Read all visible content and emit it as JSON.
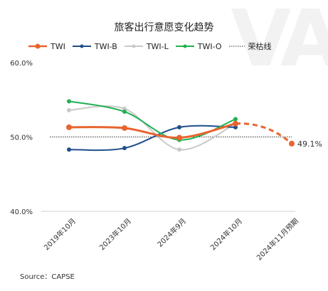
{
  "chart_data": {
    "type": "line",
    "title": "旅客出行意愿变化趋势",
    "categories": [
      "2019年10月",
      "2023年10月",
      "2024年9月",
      "2024年10月",
      "2024年11月预期"
    ],
    "ylim": [
      40,
      60
    ],
    "yticks": [
      "40.0%",
      "50.0%",
      "60.0%"
    ],
    "grid": false,
    "legend_position": "top",
    "threshold": {
      "name": "荣枯线",
      "value": 50
    },
    "series": [
      {
        "name": "TWI",
        "color": "#e8642f",
        "values": [
          51.3,
          51.2,
          49.9,
          51.8,
          null
        ],
        "forecast": 49.1,
        "forecast_label": "49.1%"
      },
      {
        "name": "TWI-B",
        "color": "#1f4e8c",
        "values": [
          48.3,
          48.5,
          51.3,
          51.3,
          null
        ]
      },
      {
        "name": "TWI-L",
        "color": "#c8c8c8",
        "values": [
          53.6,
          53.8,
          48.3,
          51.8,
          null
        ]
      },
      {
        "name": "TWI-O",
        "color": "#21b052",
        "values": [
          54.8,
          53.4,
          49.6,
          52.4,
          null
        ]
      }
    ]
  },
  "source": "Source：CAPSE",
  "watermark": "VA"
}
